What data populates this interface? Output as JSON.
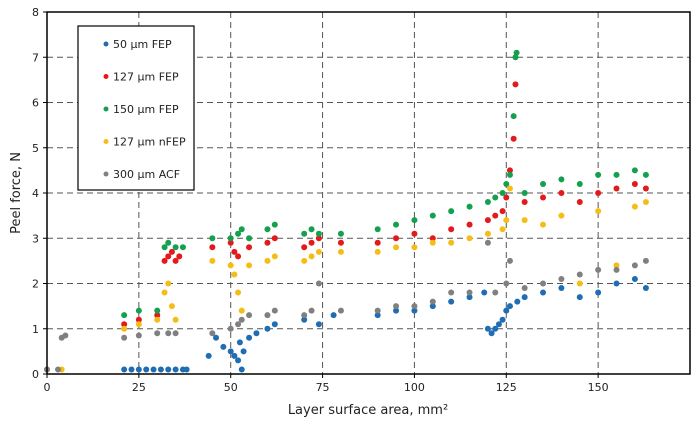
{
  "chart_data": {
    "type": "scatter",
    "xlabel": "Layer surface area, mm²",
    "ylabel": "Peel force, N",
    "xlim": [
      0,
      175
    ],
    "ylim": [
      0,
      8
    ],
    "xticks": [
      0,
      25,
      50,
      75,
      100,
      125,
      150
    ],
    "yticks": [
      0,
      1,
      2,
      3,
      4,
      5,
      6,
      7,
      8
    ],
    "grid": true,
    "legend": "top-left",
    "series": [
      {
        "name": "50 µm FEP",
        "color": "#1f6db3",
        "points": [
          [
            0,
            0.1
          ],
          [
            21,
            0.1
          ],
          [
            23,
            0.1
          ],
          [
            25,
            0.1
          ],
          [
            27,
            0.1
          ],
          [
            29,
            0.1
          ],
          [
            31,
            0.1
          ],
          [
            33,
            0.1
          ],
          [
            35,
            0.1
          ],
          [
            37,
            0.1
          ],
          [
            38,
            0.1
          ],
          [
            44,
            0.4
          ],
          [
            46,
            0.8
          ],
          [
            48,
            0.6
          ],
          [
            50,
            0.5
          ],
          [
            51,
            0.4
          ],
          [
            52,
            0.3
          ],
          [
            52.5,
            0.7
          ],
          [
            53,
            0.1
          ],
          [
            53.5,
            0.5
          ],
          [
            55,
            0.8
          ],
          [
            57,
            0.9
          ],
          [
            60,
            1.0
          ],
          [
            62,
            1.1
          ],
          [
            70,
            1.2
          ],
          [
            74,
            1.1
          ],
          [
            78,
            1.3
          ],
          [
            90,
            1.3
          ],
          [
            95,
            1.4
          ],
          [
            100,
            1.4
          ],
          [
            105,
            1.5
          ],
          [
            110,
            1.6
          ],
          [
            115,
            1.7
          ],
          [
            119,
            1.8
          ],
          [
            120,
            1.0
          ],
          [
            121,
            0.9
          ],
          [
            122,
            1.0
          ],
          [
            123,
            1.1
          ],
          [
            124,
            1.2
          ],
          [
            125,
            1.4
          ],
          [
            126,
            1.5
          ],
          [
            128,
            1.6
          ],
          [
            130,
            1.7
          ],
          [
            135,
            1.8
          ],
          [
            140,
            1.9
          ],
          [
            145,
            1.7
          ],
          [
            150,
            1.8
          ],
          [
            155,
            2.0
          ],
          [
            160,
            2.1
          ],
          [
            163,
            1.9
          ]
        ]
      },
      {
        "name": "127 µm FEP",
        "color": "#e3191b",
        "points": [
          [
            21,
            1.1
          ],
          [
            25,
            1.2
          ],
          [
            30,
            1.3
          ],
          [
            32,
            2.5
          ],
          [
            33,
            2.6
          ],
          [
            34,
            2.7
          ],
          [
            35,
            2.5
          ],
          [
            36,
            2.6
          ],
          [
            45,
            2.8
          ],
          [
            50,
            2.9
          ],
          [
            51,
            2.7
          ],
          [
            52,
            2.6
          ],
          [
            55,
            2.8
          ],
          [
            60,
            2.9
          ],
          [
            62,
            3.0
          ],
          [
            70,
            2.8
          ],
          [
            72,
            2.9
          ],
          [
            74,
            3.0
          ],
          [
            80,
            2.9
          ],
          [
            90,
            2.9
          ],
          [
            95,
            3.0
          ],
          [
            100,
            3.1
          ],
          [
            105,
            3.0
          ],
          [
            110,
            3.2
          ],
          [
            115,
            3.3
          ],
          [
            120,
            3.4
          ],
          [
            122,
            3.5
          ],
          [
            124,
            3.6
          ],
          [
            125,
            3.9
          ],
          [
            126,
            4.5
          ],
          [
            127,
            5.2
          ],
          [
            127.5,
            6.4
          ],
          [
            130,
            3.8
          ],
          [
            135,
            3.9
          ],
          [
            140,
            4.0
          ],
          [
            145,
            3.8
          ],
          [
            150,
            4.0
          ],
          [
            155,
            4.1
          ],
          [
            160,
            4.2
          ],
          [
            163,
            4.1
          ]
        ]
      },
      {
        "name": "150 µm FEP",
        "color": "#14a04f",
        "points": [
          [
            21,
            1.3
          ],
          [
            25,
            1.4
          ],
          [
            30,
            1.4
          ],
          [
            32,
            2.8
          ],
          [
            33,
            2.9
          ],
          [
            35,
            2.8
          ],
          [
            37,
            2.8
          ],
          [
            45,
            3.0
          ],
          [
            50,
            3.0
          ],
          [
            52,
            3.1
          ],
          [
            53,
            3.2
          ],
          [
            55,
            3.0
          ],
          [
            60,
            3.2
          ],
          [
            62,
            3.3
          ],
          [
            70,
            3.1
          ],
          [
            72,
            3.2
          ],
          [
            74,
            3.1
          ],
          [
            80,
            3.1
          ],
          [
            90,
            3.2
          ],
          [
            95,
            3.3
          ],
          [
            100,
            3.4
          ],
          [
            105,
            3.5
          ],
          [
            110,
            3.6
          ],
          [
            115,
            3.7
          ],
          [
            120,
            3.8
          ],
          [
            122,
            3.9
          ],
          [
            124,
            4.0
          ],
          [
            125,
            4.2
          ],
          [
            126,
            4.4
          ],
          [
            127,
            5.7
          ],
          [
            127.5,
            7.0
          ],
          [
            127.8,
            7.1
          ],
          [
            130,
            4.0
          ],
          [
            135,
            4.2
          ],
          [
            140,
            4.3
          ],
          [
            145,
            4.2
          ],
          [
            150,
            4.4
          ],
          [
            155,
            4.4
          ],
          [
            160,
            4.5
          ],
          [
            163,
            4.4
          ]
        ]
      },
      {
        "name": "127 µm nFEP",
        "color": "#f6bd16",
        "points": [
          [
            0,
            0.1
          ],
          [
            4,
            0.1
          ],
          [
            21,
            1.0
          ],
          [
            25,
            1.1
          ],
          [
            30,
            1.2
          ],
          [
            32,
            1.8
          ],
          [
            33,
            2.0
          ],
          [
            34,
            1.5
          ],
          [
            35,
            1.2
          ],
          [
            45,
            2.5
          ],
          [
            50,
            2.4
          ],
          [
            51,
            2.2
          ],
          [
            52,
            1.8
          ],
          [
            53,
            1.4
          ],
          [
            55,
            2.4
          ],
          [
            60,
            2.5
          ],
          [
            62,
            2.6
          ],
          [
            70,
            2.5
          ],
          [
            72,
            2.6
          ],
          [
            74,
            2.7
          ],
          [
            80,
            2.7
          ],
          [
            90,
            2.7
          ],
          [
            95,
            2.8
          ],
          [
            100,
            2.8
          ],
          [
            105,
            2.9
          ],
          [
            110,
            2.9
          ],
          [
            115,
            3.0
          ],
          [
            120,
            3.1
          ],
          [
            124,
            3.2
          ],
          [
            125,
            3.4
          ],
          [
            126,
            4.1
          ],
          [
            130,
            3.4
          ],
          [
            135,
            3.3
          ],
          [
            140,
            3.5
          ],
          [
            145,
            2.0
          ],
          [
            150,
            3.6
          ],
          [
            155,
            2.4
          ],
          [
            160,
            3.7
          ],
          [
            163,
            3.8
          ]
        ]
      },
      {
        "name": "300 µm ACF",
        "color": "#808080",
        "points": [
          [
            0,
            0.1
          ],
          [
            3,
            0.1
          ],
          [
            4,
            0.8
          ],
          [
            5,
            0.85
          ],
          [
            21,
            0.8
          ],
          [
            25,
            0.85
          ],
          [
            30,
            0.9
          ],
          [
            33,
            0.9
          ],
          [
            35,
            0.9
          ],
          [
            45,
            0.9
          ],
          [
            50,
            1.0
          ],
          [
            52,
            1.1
          ],
          [
            53,
            1.2
          ],
          [
            55,
            1.3
          ],
          [
            60,
            1.3
          ],
          [
            62,
            1.4
          ],
          [
            70,
            1.3
          ],
          [
            72,
            1.4
          ],
          [
            74,
            2.0
          ],
          [
            80,
            1.4
          ],
          [
            90,
            1.4
          ],
          [
            95,
            1.5
          ],
          [
            100,
            1.5
          ],
          [
            105,
            1.6
          ],
          [
            110,
            1.8
          ],
          [
            115,
            1.8
          ],
          [
            120,
            2.9
          ],
          [
            122,
            1.8
          ],
          [
            125,
            2.0
          ],
          [
            126,
            2.5
          ],
          [
            130,
            1.9
          ],
          [
            135,
            2.0
          ],
          [
            140,
            2.1
          ],
          [
            145,
            2.2
          ],
          [
            150,
            2.3
          ],
          [
            155,
            2.3
          ],
          [
            160,
            2.4
          ],
          [
            163,
            2.5
          ]
        ]
      }
    ]
  }
}
